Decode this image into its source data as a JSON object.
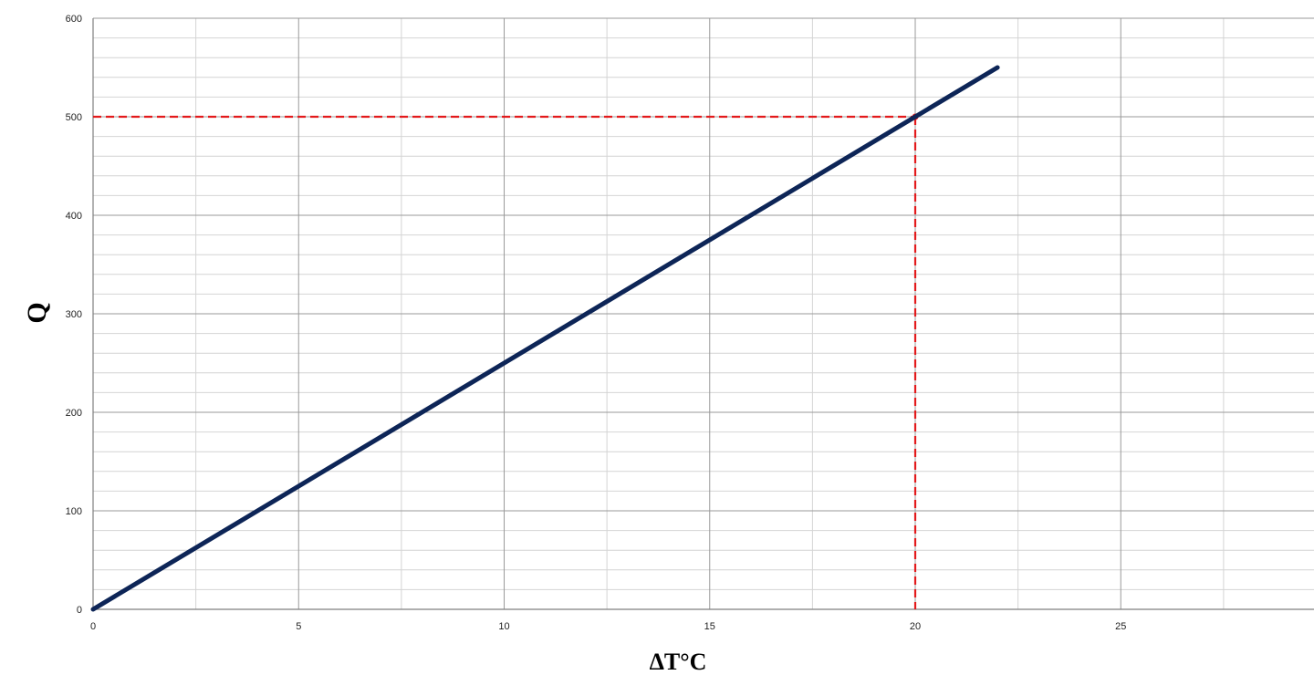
{
  "chart_data": {
    "type": "line",
    "title": "",
    "xlabel": "ΔT°C",
    "ylabel": "Q",
    "xlim": [
      0,
      29.7
    ],
    "ylim": [
      0,
      600
    ],
    "x_ticks": [
      0,
      5,
      10,
      15,
      20,
      25
    ],
    "y_ticks": [
      0,
      100,
      200,
      300,
      400,
      500,
      600
    ],
    "x_minor_step": 2.5,
    "y_minor_step": 20,
    "grid": true,
    "series": [
      {
        "color": "#0d2557",
        "points": [
          [
            0,
            0
          ],
          [
            22,
            550
          ]
        ]
      }
    ],
    "reference_lines": [
      {
        "x": 20,
        "y": 500,
        "color": "#e31a1c",
        "style": "dashed"
      }
    ],
    "colors": {
      "major_grid": "#9a9a9a",
      "minor_grid": "#d4d4d4",
      "axis": "#7f7f7f"
    }
  }
}
